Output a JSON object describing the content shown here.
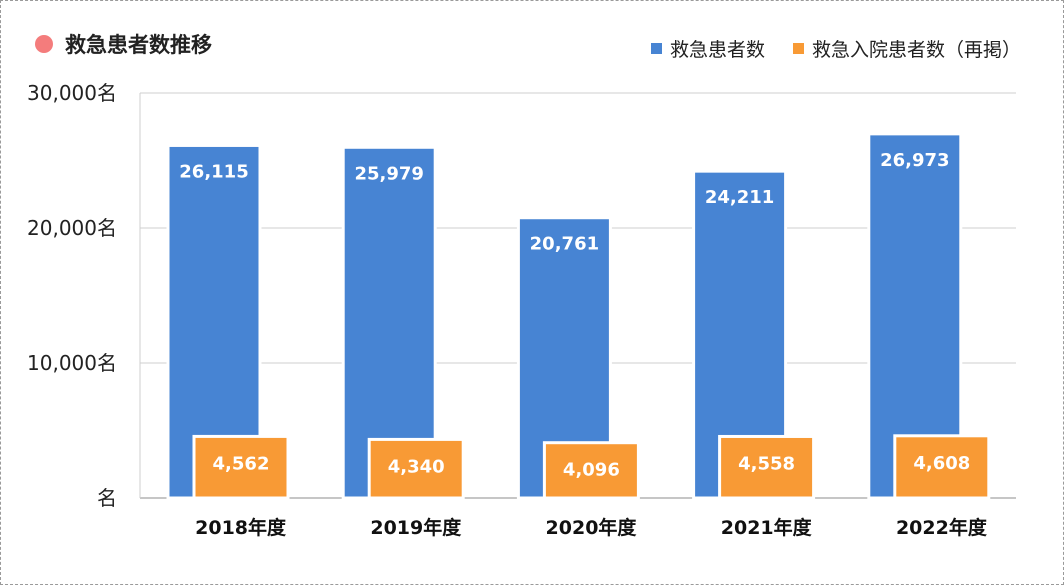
{
  "chart_data": {
    "type": "bar",
    "title": "救急患者数推移",
    "categories": [
      "2018年度",
      "2019年度",
      "2020年度",
      "2021年度",
      "2022年度"
    ],
    "series": [
      {
        "name": "救急患者数",
        "values": [
          26115,
          25979,
          20761,
          24211,
          26973
        ],
        "labels": [
          "26,115",
          "25,979",
          "20,761",
          "24,211",
          "26,973"
        ],
        "color": "#4784d3"
      },
      {
        "name": "救急入院患者数（再掲）",
        "values": [
          4562,
          4340,
          4096,
          4558,
          4608
        ],
        "labels": [
          "4,562",
          "4,340",
          "4,096",
          "4,558",
          "4,608"
        ],
        "color": "#f89a35"
      }
    ],
    "y_ticks": [
      {
        "value": 0,
        "label": "名"
      },
      {
        "value": 10000,
        "label": "10,000名"
      },
      {
        "value": 20000,
        "label": "20,000名"
      },
      {
        "value": 30000,
        "label": "30,000名"
      }
    ],
    "ylim": [
      0,
      30000
    ],
    "grid": true,
    "legend_position": "top-right",
    "xlabel": "",
    "ylabel": ""
  }
}
